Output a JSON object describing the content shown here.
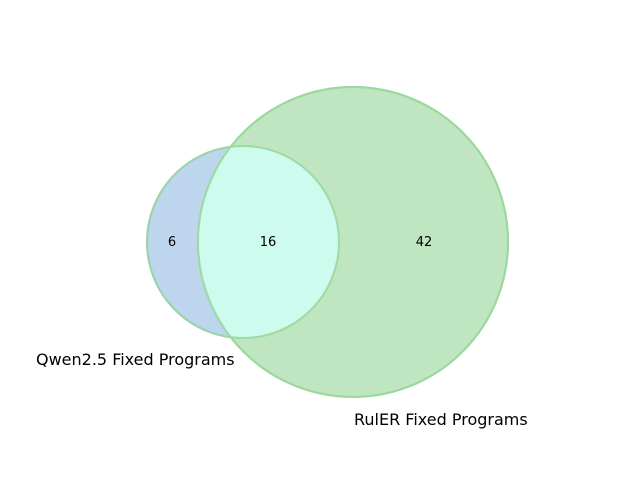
{
  "chart_data": {
    "type": "venn",
    "sets": [
      {
        "name": "Qwen2.5 Fixed Programs",
        "size": 22,
        "color": "#8fb9e0"
      },
      {
        "name": "RulER Fixed Programs",
        "size": 58,
        "color": "#8fd18f"
      }
    ],
    "regions": {
      "only_a": "6",
      "intersection": "16",
      "only_b": "42"
    },
    "intersection_color": "#cdfbee"
  }
}
